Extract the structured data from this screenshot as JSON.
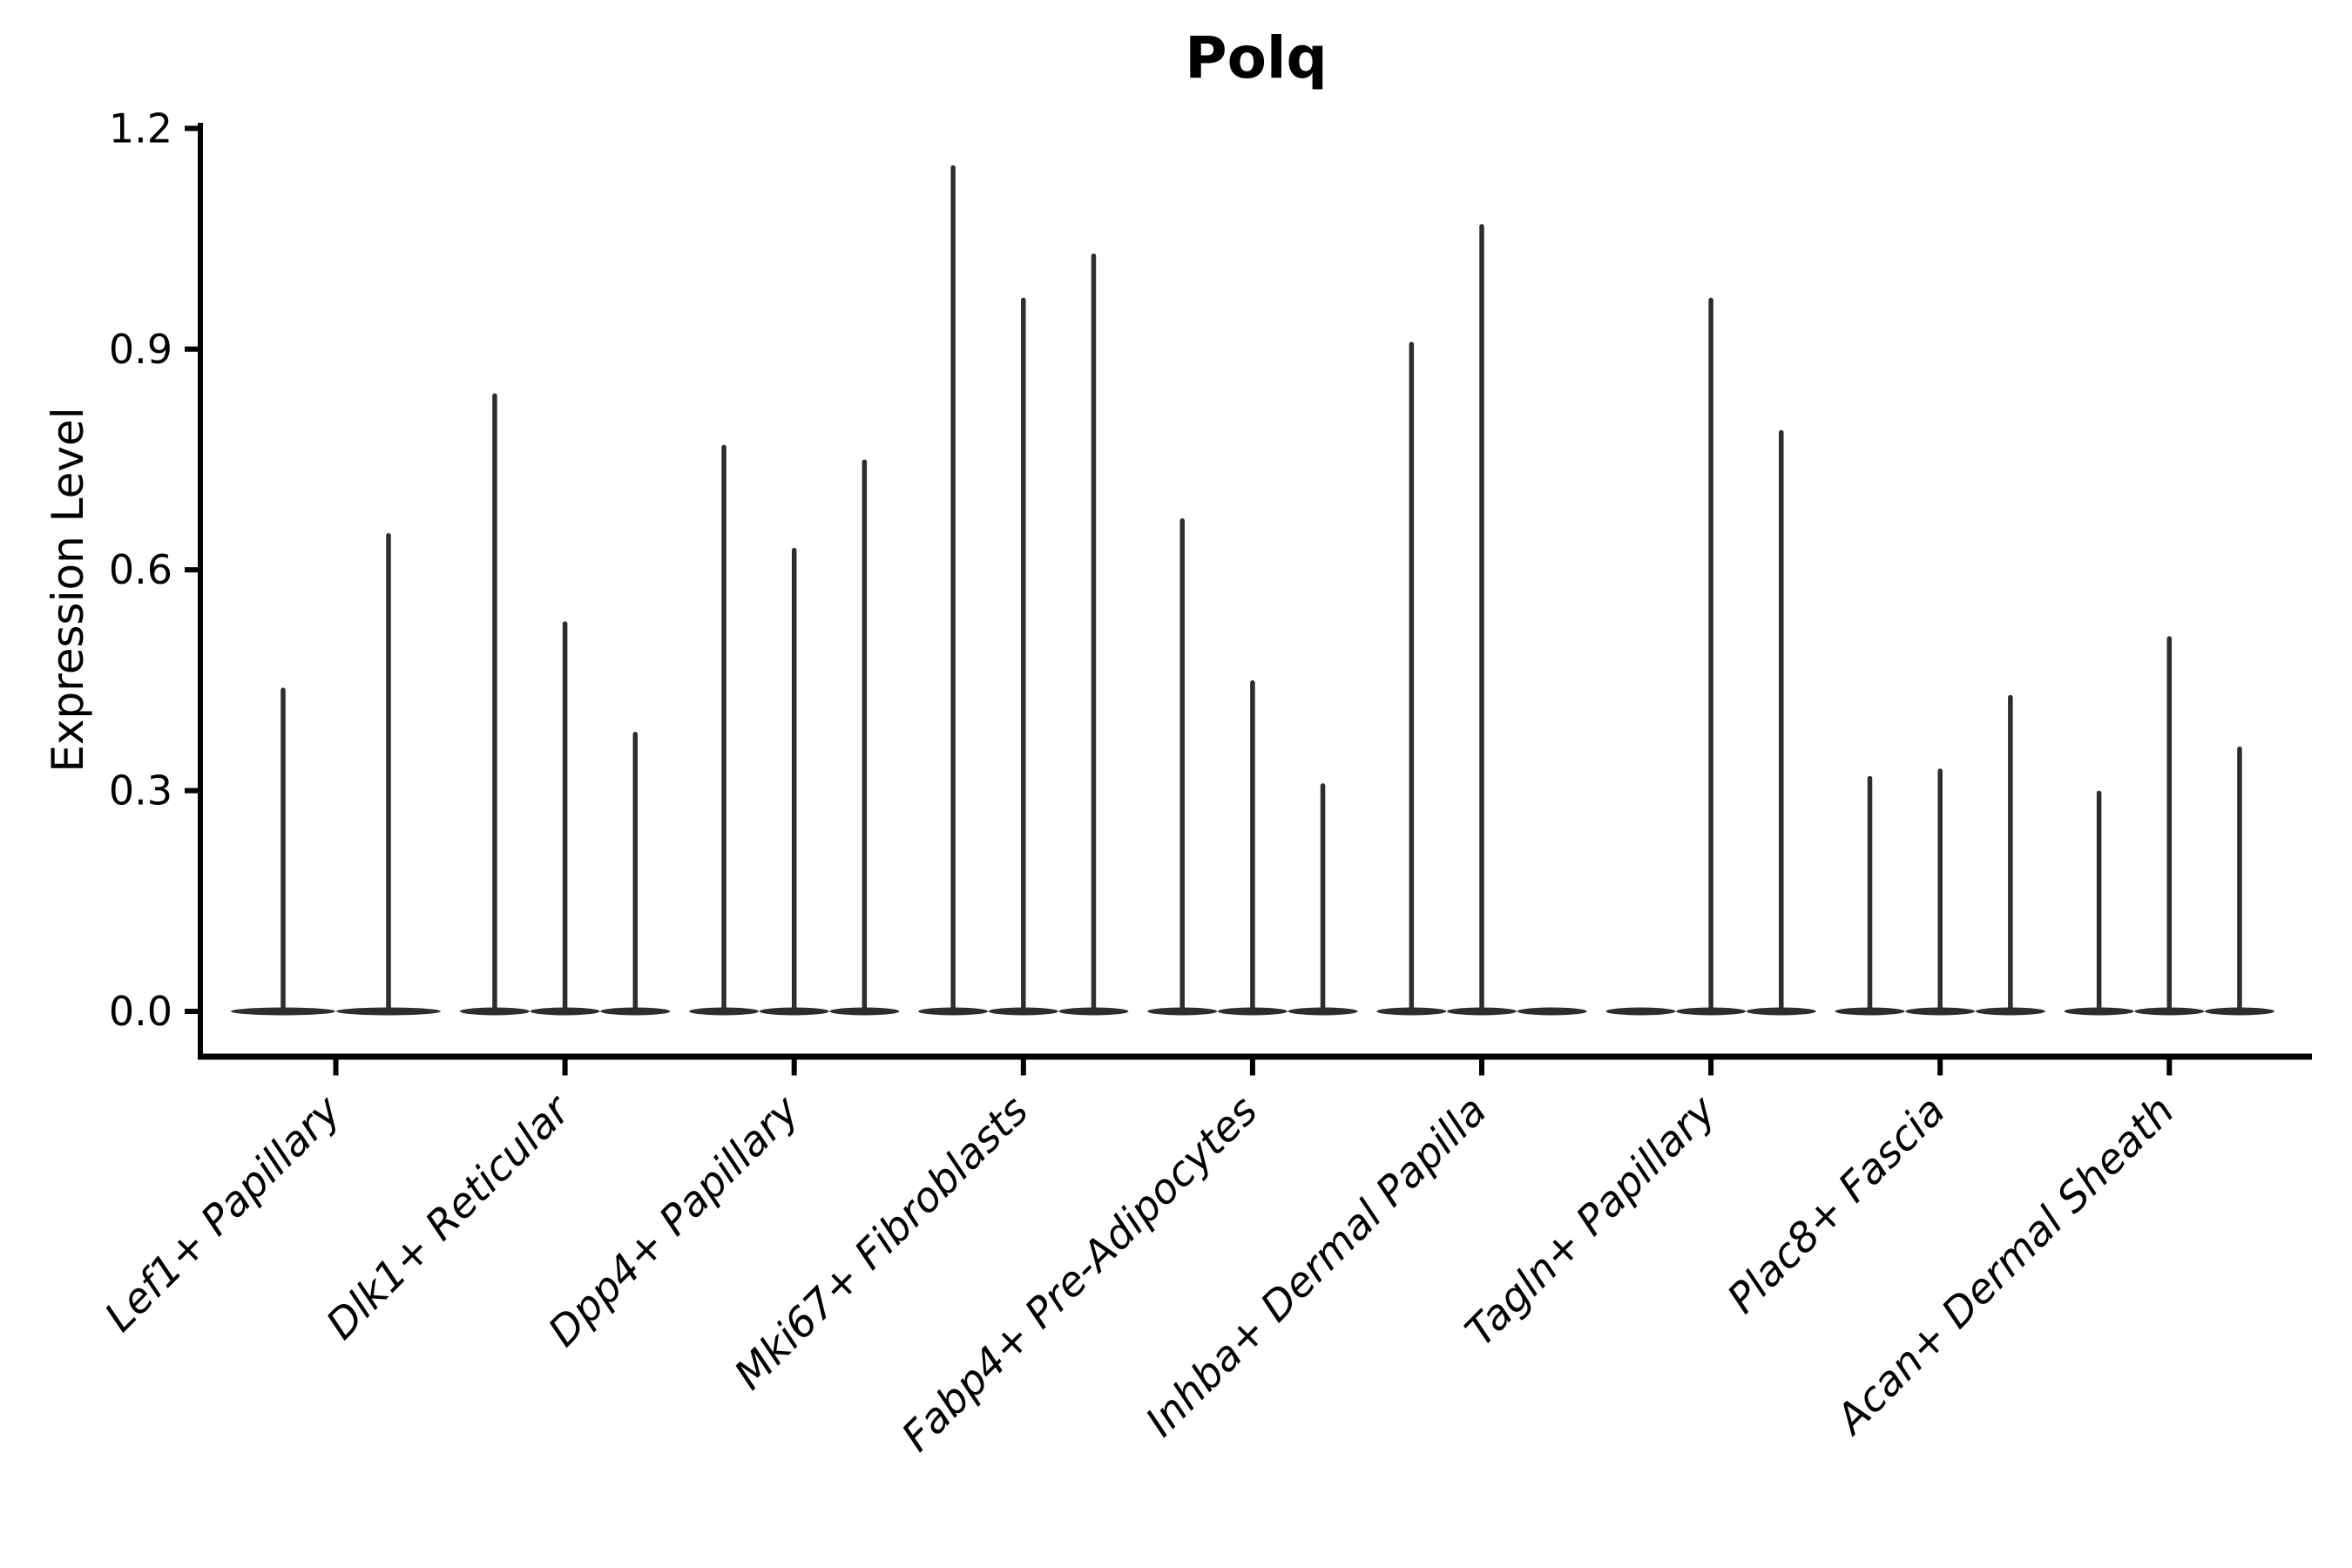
{
  "title": "Polq",
  "axes": {
    "ylabel": "Expression Level"
  },
  "colors": {
    "violin": "#2d2d2d",
    "axis": "#000000",
    "background": "#ffffff"
  },
  "chart_data": {
    "type": "violin",
    "title": "Polq",
    "xlabel": "",
    "ylabel": "Expression Level",
    "ylim": [
      -0.06,
      1.21
    ],
    "yticks": [
      0.0,
      0.3,
      0.6,
      0.9,
      1.2
    ],
    "ytick_labels": [
      "0.0",
      "0.3",
      "0.6",
      "0.9",
      "1.2"
    ],
    "grid": false,
    "legend": false,
    "xtick_label_style": "italic, rotated 45 degrees",
    "description": "Stacked thin violin plot of Polq expression; each cell-type category contains 2-3 narrow violins (one per sample) shown as a flat base at 0 with a thin spike up to the maximum expression value. Zero peak means a flat violin with no spike.",
    "categories": [
      "Lef1+ Papillary",
      "Dlk1+ Reticular",
      "Dpp4+ Papillary",
      "Mki67+ Fibroblasts",
      "Fabp4+ Pre-Adipocytes",
      "Inhba+ Dermal Papilla",
      "Tagln+ Papillary",
      "Plac8+ Fascia",
      "Acan+ Dermal Sheath"
    ],
    "violins": [
      {
        "category": "Lef1+ Papillary",
        "peaks": [
          0.44,
          0.65
        ]
      },
      {
        "category": "Dlk1+ Reticular",
        "peaks": [
          0.84,
          0.53,
          0.38
        ]
      },
      {
        "category": "Dpp4+ Papillary",
        "peaks": [
          0.77,
          0.63,
          0.75
        ]
      },
      {
        "category": "Mki67+ Fibroblasts",
        "peaks": [
          1.15,
          0.97,
          1.03
        ]
      },
      {
        "category": "Fabp4+ Pre-Adipocytes",
        "peaks": [
          0.67,
          0.45,
          0.31
        ]
      },
      {
        "category": "Inhba+ Dermal Papilla",
        "peaks": [
          0.91,
          1.07,
          0
        ]
      },
      {
        "category": "Tagln+ Papillary",
        "peaks": [
          0,
          0.97,
          0.79
        ]
      },
      {
        "category": "Plac8+ Fascia",
        "peaks": [
          0.32,
          0.33,
          0.43
        ]
      },
      {
        "category": "Acan+ Dermal Sheath",
        "peaks": [
          0.3,
          0.51,
          0.36
        ]
      }
    ]
  }
}
